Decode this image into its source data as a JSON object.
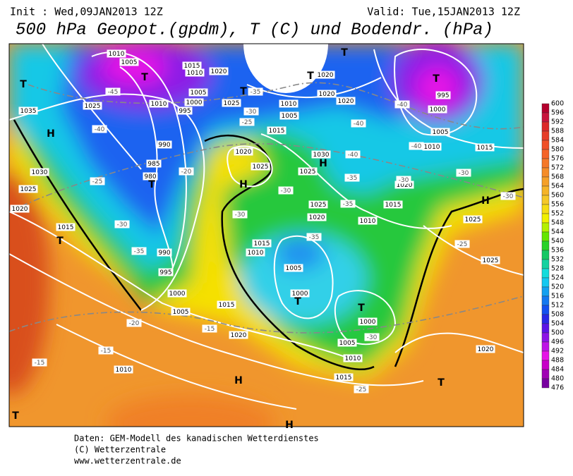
{
  "header": {
    "init": "Init : Wed,09JAN2013 12Z",
    "valid": "Valid: Tue,15JAN2013 12Z",
    "title": "500 hPa Geopot.(gpdm), T (C) und Bodendr. (hPa)"
  },
  "colorbar": {
    "levels": [
      600,
      596,
      592,
      588,
      584,
      580,
      576,
      572,
      568,
      564,
      560,
      556,
      552,
      548,
      544,
      540,
      536,
      532,
      528,
      524,
      520,
      516,
      512,
      508,
      504,
      500,
      496,
      492,
      488,
      484,
      480,
      476
    ],
    "colors": [
      "#b4002d",
      "#c8143c",
      "#dc2828",
      "#e63c28",
      "#f05028",
      "#f56428",
      "#f57828",
      "#f58c28",
      "#f5a028",
      "#f5b428",
      "#f5c828",
      "#f5dc14",
      "#f0f000",
      "#b4f000",
      "#64e600",
      "#28d228",
      "#14c864",
      "#14d2a0",
      "#14dcdc",
      "#14c8f0",
      "#14a0f0",
      "#1478f0",
      "#1450f0",
      "#2828e6",
      "#5a14e6",
      "#8c14e6",
      "#be14e6",
      "#e614e6",
      "#c800c8",
      "#a000b4",
      "#7800a0"
    ]
  },
  "map": {
    "highs_lows": [
      "H",
      "H",
      "H",
      "H",
      "H",
      "H",
      "T",
      "T",
      "T",
      "T",
      "T",
      "T",
      "T",
      "T",
      "T",
      "T",
      "T",
      "T"
    ],
    "isobar_labels": [
      "1010",
      "1005",
      "1015",
      "1010",
      "1020",
      "1035",
      "1025",
      "1010",
      "1005",
      "1000",
      "995",
      "1025",
      "1010",
      "1005",
      "1015",
      "1020",
      "1020",
      "1020",
      "1030",
      "1025",
      "1025",
      "1020",
      "1015",
      "1010",
      "1015",
      "1010",
      "1005",
      "1000",
      "1000",
      "1005",
      "1010",
      "1015",
      "1020",
      "1025",
      "1025",
      "1020",
      "995",
      "1000",
      "1005",
      "1010",
      "1015",
      "990",
      "985",
      "980",
      "990",
      "995",
      "1000",
      "1005",
      "1015",
      "1020",
      "1010",
      "1030",
      "1025",
      "1020",
      "1015",
      "1020",
      "1025"
    ],
    "isotherm_labels": [
      "-45",
      "-40",
      "-35",
      "-30",
      "-25",
      "-20",
      "-25",
      "-30",
      "-35",
      "-40",
      "-40",
      "-35",
      "-30",
      "-35",
      "-30",
      "-35",
      "-40",
      "-40",
      "-30",
      "-30",
      "-30",
      "-25",
      "-20",
      "-15",
      "-15",
      "-15",
      "-25",
      "-30"
    ]
  },
  "footer": {
    "lines": [
      "Daten: GEM-Modell des kanadischen Wetterdienstes",
      "(C) Wetterzentrale",
      "www.wetterzentrale.de"
    ]
  }
}
